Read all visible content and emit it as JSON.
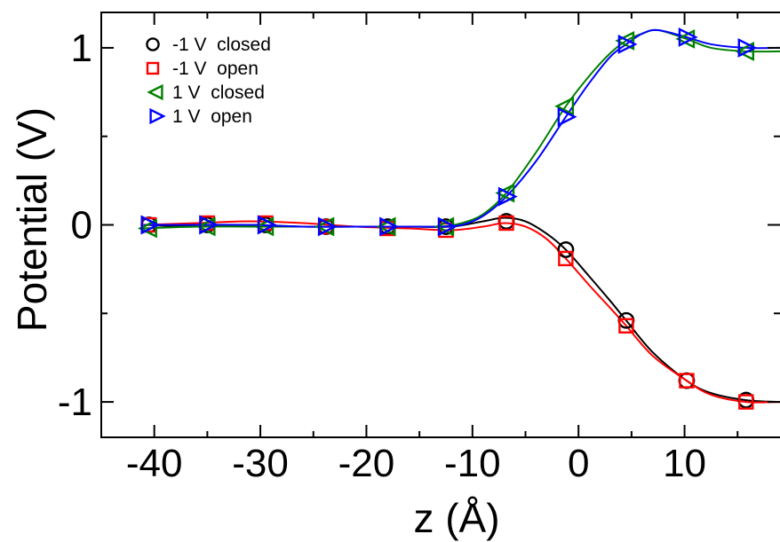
{
  "chart_data": {
    "type": "line",
    "title": "",
    "xlabel": "z (Å)",
    "ylabel": "Potential (V)",
    "xlim": [
      -45,
      19
    ],
    "ylim": [
      -1.2,
      1.2
    ],
    "grid": false,
    "legend_position": "top-left",
    "x_ticks": [
      {
        "value": -40,
        "label": "-40"
      },
      {
        "value": -30,
        "label": "-30"
      },
      {
        "value": -20,
        "label": "-20"
      },
      {
        "value": -10,
        "label": "-10"
      },
      {
        "value": 0,
        "label": "0"
      },
      {
        "value": 10,
        "label": "10"
      }
    ],
    "y_ticks": [
      {
        "value": -1,
        "label": "-1"
      },
      {
        "value": 0,
        "label": "0"
      },
      {
        "value": 1,
        "label": "1"
      }
    ],
    "series": [
      {
        "name": "-1 V  closed",
        "color": "#000000",
        "marker": "circle",
        "x": [
          -40.5,
          -35,
          -29.5,
          -23.8,
          -18,
          -12.5,
          -6.8,
          -1.2,
          4.5,
          10.2,
          15.8
        ],
        "y": [
          0.0,
          0.0,
          0.0,
          -0.01,
          -0.01,
          -0.01,
          0.02,
          -0.14,
          -0.54,
          -0.88,
          -0.99
        ],
        "curve": [
          [
            -41,
            0.0
          ],
          [
            -36,
            -0.01
          ],
          [
            -31,
            0.0
          ],
          [
            -26,
            -0.01
          ],
          [
            -21,
            -0.01
          ],
          [
            -16,
            -0.01
          ],
          [
            -12,
            -0.01
          ],
          [
            -9,
            0.02
          ],
          [
            -7,
            0.04
          ],
          [
            -5,
            0.02
          ],
          [
            -3,
            -0.05
          ],
          [
            -1.2,
            -0.14
          ],
          [
            1,
            -0.29
          ],
          [
            3,
            -0.43
          ],
          [
            4.5,
            -0.54
          ],
          [
            7,
            -0.72
          ],
          [
            10.2,
            -0.88
          ],
          [
            12.5,
            -0.95
          ],
          [
            15.8,
            -0.99
          ],
          [
            19,
            -1.0
          ]
        ]
      },
      {
        "name": "-1 V  open",
        "color": "#ff0000",
        "marker": "square",
        "x": [
          -40.5,
          -35,
          -29.5,
          -23.8,
          -18,
          -12.5,
          -6.8,
          -1.2,
          4.5,
          10.2,
          15.8
        ],
        "y": [
          0.0,
          0.01,
          0.01,
          -0.01,
          -0.02,
          -0.03,
          0.01,
          -0.19,
          -0.57,
          -0.88,
          -1.0
        ],
        "curve": [
          [
            -41,
            0.0
          ],
          [
            -36,
            0.01
          ],
          [
            -31,
            0.02
          ],
          [
            -26,
            0.01
          ],
          [
            -21,
            -0.01
          ],
          [
            -16,
            -0.02
          ],
          [
            -12,
            -0.03
          ],
          [
            -9,
            -0.01
          ],
          [
            -7,
            0.01
          ],
          [
            -5,
            -0.01
          ],
          [
            -3,
            -0.08
          ],
          [
            -1.2,
            -0.19
          ],
          [
            1,
            -0.34
          ],
          [
            3,
            -0.47
          ],
          [
            4.5,
            -0.57
          ],
          [
            7,
            -0.74
          ],
          [
            10.2,
            -0.88
          ],
          [
            12.5,
            -0.96
          ],
          [
            15.8,
            -1.0
          ],
          [
            19,
            -1.0
          ]
        ]
      },
      {
        "name": "1 V  closed",
        "color": "#008000",
        "marker": "triangle-left",
        "x": [
          -40.5,
          -35,
          -29.5,
          -23.8,
          -18,
          -12.5,
          -6.8,
          -1.2,
          4.5,
          10.2,
          15.8
        ],
        "y": [
          -0.02,
          -0.01,
          -0.01,
          -0.01,
          -0.01,
          -0.01,
          0.18,
          0.67,
          1.04,
          1.05,
          0.98
        ],
        "curve": [
          [
            -41,
            -0.02
          ],
          [
            -36,
            -0.01
          ],
          [
            -31,
            -0.01
          ],
          [
            -26,
            -0.01
          ],
          [
            -21,
            -0.01
          ],
          [
            -16,
            -0.01
          ],
          [
            -13,
            -0.01
          ],
          [
            -11,
            0.01
          ],
          [
            -9,
            0.06
          ],
          [
            -6.8,
            0.18
          ],
          [
            -4,
            0.41
          ],
          [
            -1.2,
            0.67
          ],
          [
            1,
            0.84
          ],
          [
            3,
            0.97
          ],
          [
            4.5,
            1.04
          ],
          [
            6,
            1.08
          ],
          [
            7.5,
            1.1
          ],
          [
            10.2,
            1.05
          ],
          [
            12.5,
            1.0
          ],
          [
            15.8,
            0.98
          ],
          [
            19,
            0.98
          ]
        ]
      },
      {
        "name": "1 V  open",
        "color": "#0000ff",
        "marker": "triangle-right",
        "x": [
          -40.5,
          -35,
          -29.5,
          -23.8,
          -18,
          -12.5,
          -6.8,
          -1.2,
          4.5,
          10.2,
          15.8
        ],
        "y": [
          0.0,
          0.0,
          0.0,
          -0.01,
          -0.01,
          -0.01,
          0.16,
          0.61,
          1.02,
          1.06,
          1.0
        ],
        "curve": [
          [
            -41,
            0.0
          ],
          [
            -36,
            0.0
          ],
          [
            -31,
            0.0
          ],
          [
            -26,
            -0.01
          ],
          [
            -21,
            -0.01
          ],
          [
            -16,
            -0.01
          ],
          [
            -13,
            -0.01
          ],
          [
            -11,
            0.0
          ],
          [
            -9,
            0.05
          ],
          [
            -6.8,
            0.16
          ],
          [
            -4,
            0.36
          ],
          [
            -1.2,
            0.61
          ],
          [
            1,
            0.8
          ],
          [
            3,
            0.95
          ],
          [
            4.5,
            1.02
          ],
          [
            6,
            1.08
          ],
          [
            7.5,
            1.1
          ],
          [
            10.2,
            1.06
          ],
          [
            12.5,
            1.02
          ],
          [
            15.8,
            1.0
          ],
          [
            19,
            1.0
          ]
        ]
      }
    ]
  }
}
